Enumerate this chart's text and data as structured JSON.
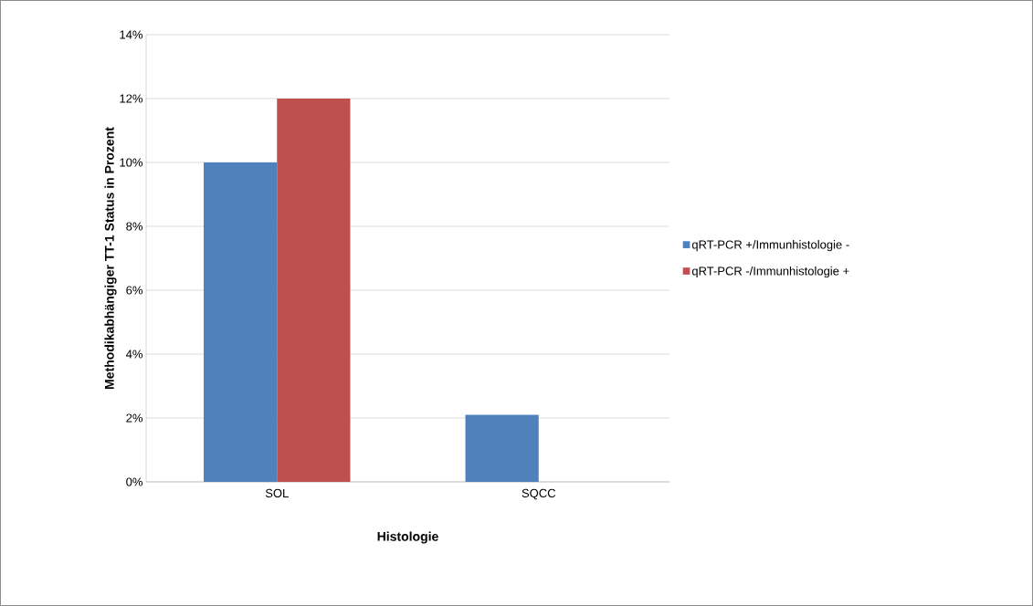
{
  "chart_data": {
    "type": "bar",
    "xlabel": "Histologie",
    "ylabel": "Methodikabhängiger TT-1 Status in Prozent",
    "categories": [
      "SOL",
      "SQCC"
    ],
    "series": [
      {
        "name": "qRT-PCR +/Immunhistologie -",
        "color": "#4f81bd",
        "values": [
          10,
          2.1
        ]
      },
      {
        "name": "qRT-PCR -/Immunhistologie +",
        "color": "#c0504d",
        "values": [
          12,
          0
        ]
      }
    ],
    "ylim": [
      0,
      14
    ],
    "yticks": [
      {
        "value": 0,
        "label": "0%"
      },
      {
        "value": 2,
        "label": "2%"
      },
      {
        "value": 4,
        "label": "4%"
      },
      {
        "value": 6,
        "label": "6%"
      },
      {
        "value": 8,
        "label": "8%"
      },
      {
        "value": 10,
        "label": "10%"
      },
      {
        "value": 12,
        "label": "12%"
      },
      {
        "value": 14,
        "label": "14%"
      }
    ],
    "grid": "y",
    "legend": "right"
  }
}
